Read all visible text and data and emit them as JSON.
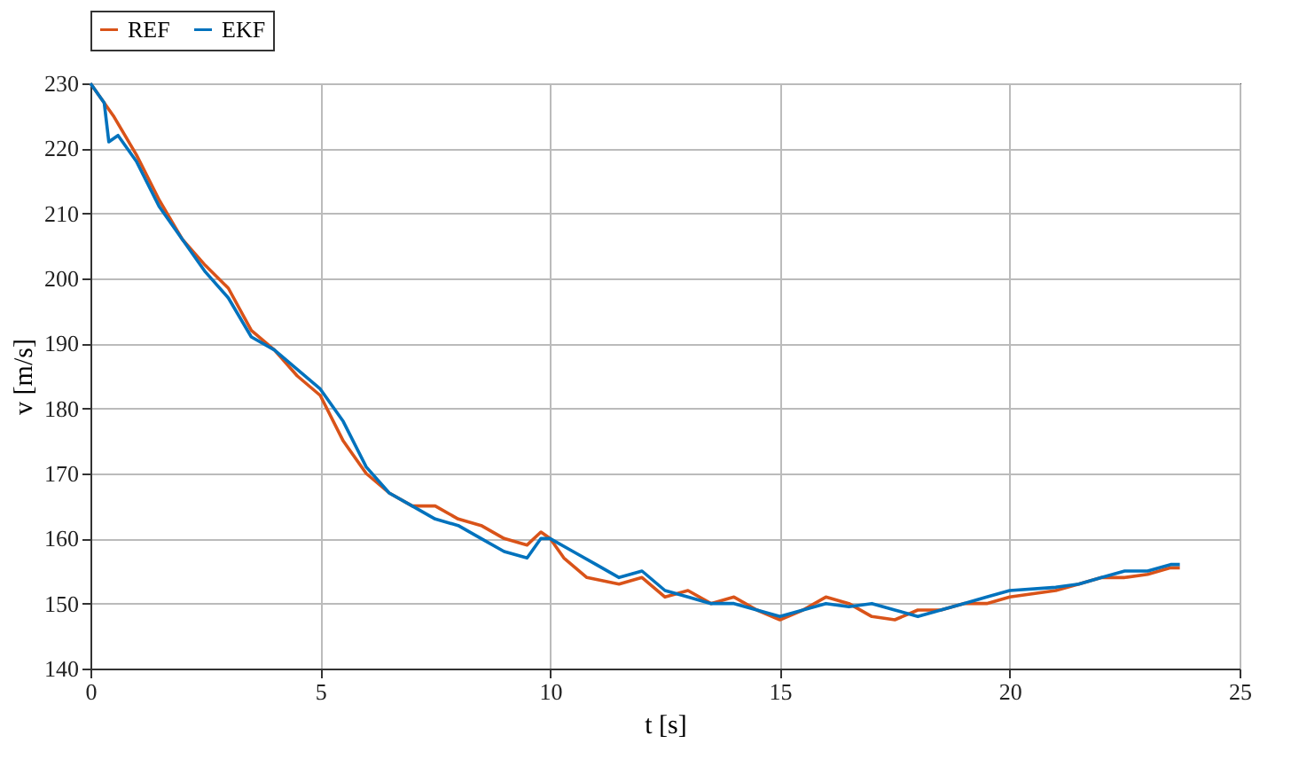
{
  "chart_data": {
    "type": "line",
    "xlabel": "t [s]",
    "ylabel": "v [m/s]",
    "xlim": [
      0,
      25
    ],
    "ylim": [
      140,
      230
    ],
    "xticks": [
      0,
      5,
      10,
      15,
      20,
      25
    ],
    "yticks": [
      140,
      150,
      160,
      170,
      180,
      190,
      200,
      210,
      220,
      230
    ],
    "grid": true,
    "legend": "top",
    "series": [
      {
        "name": "REF",
        "color": "#d95319",
        "x": [
          0,
          0.5,
          1,
          1.5,
          2,
          2.5,
          3,
          3.5,
          4,
          4.5,
          5,
          5.5,
          6,
          6.5,
          7,
          7.5,
          8,
          8.5,
          9,
          9.5,
          9.8,
          10,
          10.3,
          10.8,
          11.5,
          12,
          12.5,
          13,
          13.5,
          14,
          14.5,
          15,
          15.5,
          16,
          16.5,
          17,
          17.5,
          18,
          18.5,
          19,
          19.5,
          20,
          21,
          21.5,
          22,
          22.5,
          23,
          23.5,
          23.7
        ],
        "values": [
          230,
          225,
          219,
          212,
          206,
          202,
          198.5,
          192,
          189,
          185,
          182,
          175,
          170,
          167,
          165,
          165,
          163,
          162,
          160,
          159,
          161,
          160,
          157,
          154,
          153,
          154,
          151,
          152,
          150,
          151,
          149,
          147.5,
          149,
          151,
          150,
          148,
          147.5,
          149,
          149,
          150,
          150,
          151,
          152,
          153,
          154,
          154,
          154.5,
          155.5,
          155.5
        ]
      },
      {
        "name": "EKF",
        "color": "#0072bd",
        "x": [
          0,
          0.3,
          0.4,
          0.6,
          1,
          1.5,
          2,
          2.5,
          3,
          3.5,
          4,
          4.5,
          5,
          5.5,
          6,
          6.5,
          7,
          7.5,
          8,
          8.5,
          9,
          9.5,
          9.8,
          10,
          10.5,
          11,
          11.5,
          12,
          12.5,
          13,
          13.5,
          14,
          14.5,
          15,
          15.5,
          16,
          16.5,
          17,
          17.5,
          18,
          18.5,
          19,
          19.5,
          20,
          21,
          21.5,
          22,
          22.5,
          23,
          23.5,
          23.7
        ],
        "values": [
          230,
          227,
          221,
          222,
          218,
          211,
          206,
          201,
          197,
          191,
          189,
          186,
          183,
          178,
          171,
          167,
          165,
          163,
          162,
          160,
          158,
          157,
          160,
          160,
          158,
          156,
          154,
          155,
          152,
          151,
          150,
          150,
          149,
          148,
          149,
          150,
          149.5,
          150,
          149,
          148,
          149,
          150,
          151,
          152,
          152.5,
          153,
          154,
          155,
          155,
          156,
          156
        ]
      }
    ]
  }
}
